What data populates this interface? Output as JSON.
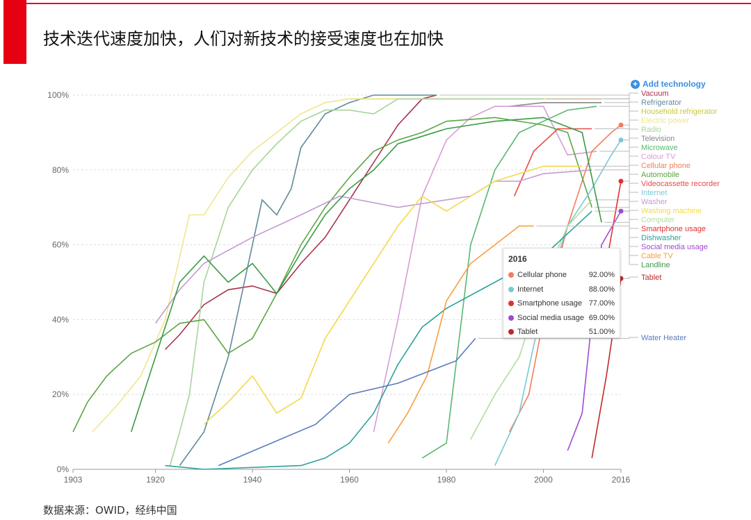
{
  "header": {
    "title": "技术迭代速度加快，人们对新技术的接受速度也在加快"
  },
  "footer": {
    "source": "数据来源：OWID，经纬中国"
  },
  "controls": {
    "add_technology": "Add technology"
  },
  "tooltip": {
    "year": "2016",
    "rows": [
      {
        "name": "Cellular phone",
        "value": "92.00%",
        "color": "#f47c5a"
      },
      {
        "name": "Internet",
        "value": "88.00%",
        "color": "#7cc8d2"
      },
      {
        "name": "Smartphone usage",
        "value": "77.00%",
        "color": "#e03030"
      },
      {
        "name": "Social media usage",
        "value": "69.00%",
        "color": "#a04ad2"
      },
      {
        "name": "Tablet",
        "value": "51.00%",
        "color": "#c0282a"
      }
    ]
  },
  "chart_data": {
    "type": "line",
    "title": "技术迭代速度加快，人们对新技术的接受速度也在加快",
    "xlabel": "",
    "ylabel": "",
    "xlim": [
      1903,
      2016
    ],
    "ylim": [
      0,
      100
    ],
    "x_ticks": [
      "1903",
      "1920",
      "1940",
      "1960",
      "1980",
      "2000",
      "2016"
    ],
    "y_ticks": [
      "0%",
      "20%",
      "40%",
      "60%",
      "80%",
      "100%"
    ],
    "legend_position": "right",
    "series": [
      {
        "name": "Vacuum",
        "color": "#a8324a",
        "points": [
          [
            1922,
            32
          ],
          [
            1925,
            36
          ],
          [
            1930,
            44
          ],
          [
            1935,
            48
          ],
          [
            1940,
            49
          ],
          [
            1945,
            47
          ],
          [
            1950,
            55
          ],
          [
            1955,
            62
          ],
          [
            1960,
            72
          ],
          [
            1965,
            82
          ],
          [
            1970,
            92
          ],
          [
            1975,
            99
          ],
          [
            1978,
            100
          ]
        ]
      },
      {
        "name": "Refrigerator",
        "color": "#5f8a9a",
        "points": [
          [
            1925,
            1
          ],
          [
            1930,
            10
          ],
          [
            1935,
            30
          ],
          [
            1940,
            60
          ],
          [
            1942,
            72
          ],
          [
            1945,
            68
          ],
          [
            1948,
            75
          ],
          [
            1950,
            86
          ],
          [
            1955,
            95
          ],
          [
            1960,
            98
          ],
          [
            1965,
            100
          ],
          [
            1978,
            100
          ]
        ]
      },
      {
        "name": "Household refrigerator",
        "color": "#c8c83c",
        "points": [
          [
            1960,
            99
          ],
          [
            1980,
            99
          ],
          [
            2000,
            99
          ],
          [
            2012,
            99
          ]
        ]
      },
      {
        "name": "Electric power",
        "color": "#f0e68c",
        "points": [
          [
            1907,
            10
          ],
          [
            1912,
            17
          ],
          [
            1917,
            25
          ],
          [
            1922,
            40
          ],
          [
            1927,
            68
          ],
          [
            1930,
            68
          ],
          [
            1935,
            78
          ],
          [
            1940,
            85
          ],
          [
            1945,
            90
          ],
          [
            1950,
            95
          ],
          [
            1955,
            98
          ],
          [
            1960,
            99
          ],
          [
            2012,
            99
          ]
        ]
      },
      {
        "name": "Radio",
        "color": "#a6d49a",
        "points": [
          [
            1923,
            1
          ],
          [
            1925,
            10
          ],
          [
            1927,
            20
          ],
          [
            1930,
            50
          ],
          [
            1935,
            70
          ],
          [
            1940,
            80
          ],
          [
            1945,
            87
          ],
          [
            1950,
            93
          ],
          [
            1955,
            96
          ],
          [
            1960,
            96
          ],
          [
            1965,
            95
          ],
          [
            1970,
            99
          ],
          [
            2000,
            99
          ]
        ]
      },
      {
        "name": "Television",
        "color": "#888888",
        "points": [
          [
            1993,
            97
          ],
          [
            2000,
            98
          ],
          [
            2012,
            98
          ]
        ]
      },
      {
        "name": "Microwave",
        "color": "#56b870",
        "points": [
          [
            1975,
            3
          ],
          [
            1980,
            7
          ],
          [
            1985,
            60
          ],
          [
            1990,
            80
          ],
          [
            1995,
            90
          ],
          [
            2000,
            93
          ],
          [
            2005,
            96
          ],
          [
            2011,
            97
          ]
        ]
      },
      {
        "name": "Colour TV",
        "color": "#d69ed2",
        "points": [
          [
            1965,
            10
          ],
          [
            1970,
            40
          ],
          [
            1975,
            73
          ],
          [
            1980,
            88
          ],
          [
            1985,
            94
          ],
          [
            1990,
            97
          ],
          [
            2000,
            97
          ],
          [
            2005,
            84
          ],
          [
            2011,
            85
          ]
        ]
      },
      {
        "name": "Cellular phone",
        "color": "#f47c5a",
        "points": [
          [
            1993,
            10
          ],
          [
            1997,
            20
          ],
          [
            2000,
            40
          ],
          [
            2005,
            65
          ],
          [
            2010,
            85
          ],
          [
            2014,
            90
          ],
          [
            2016,
            92
          ]
        ]
      },
      {
        "name": "Automobile",
        "color": "#5aa642",
        "points": [
          [
            1903,
            10
          ],
          [
            1906,
            18
          ],
          [
            1910,
            25
          ],
          [
            1915,
            31
          ],
          [
            1920,
            34
          ],
          [
            1925,
            39
          ],
          [
            1930,
            40
          ],
          [
            1935,
            31
          ],
          [
            1940,
            35
          ],
          [
            1945,
            47
          ],
          [
            1950,
            60
          ],
          [
            1955,
            70
          ],
          [
            1960,
            78
          ],
          [
            1965,
            85
          ],
          [
            1970,
            88
          ],
          [
            1975,
            90
          ],
          [
            1980,
            93
          ],
          [
            1990,
            94
          ],
          [
            2000,
            92
          ],
          [
            2005,
            90
          ],
          [
            2010,
            70
          ]
        ]
      },
      {
        "name": "Videocassette recorder",
        "color": "#e84a4a",
        "points": [
          [
            1994,
            73
          ],
          [
            1998,
            85
          ],
          [
            2003,
            91
          ],
          [
            2010,
            91
          ]
        ]
      },
      {
        "name": "Internet",
        "color": "#7cc8d2",
        "points": [
          [
            1990,
            1
          ],
          [
            1995,
            15
          ],
          [
            2000,
            45
          ],
          [
            2005,
            65
          ],
          [
            2010,
            75
          ],
          [
            2014,
            84
          ],
          [
            2016,
            88
          ]
        ]
      },
      {
        "name": "Washer",
        "color": "#c39ad2",
        "points": [
          [
            1920,
            39
          ],
          [
            1925,
            48
          ],
          [
            1930,
            55
          ],
          [
            1940,
            62
          ],
          [
            1950,
            68
          ],
          [
            1958,
            73
          ],
          [
            1970,
            70
          ],
          [
            1985,
            73
          ],
          [
            1990,
            77
          ],
          [
            1995,
            77
          ],
          [
            2000,
            79
          ],
          [
            2010,
            80
          ]
        ]
      },
      {
        "name": "Washing machine",
        "color": "#f5d84a",
        "points": [
          [
            1930,
            12
          ],
          [
            1935,
            18
          ],
          [
            1940,
            25
          ],
          [
            1945,
            15
          ],
          [
            1950,
            19
          ],
          [
            1955,
            35
          ],
          [
            1960,
            45
          ],
          [
            1965,
            55
          ],
          [
            1970,
            65
          ],
          [
            1975,
            73
          ],
          [
            1980,
            69
          ],
          [
            1985,
            73
          ],
          [
            1990,
            77
          ],
          [
            2000,
            81
          ],
          [
            2008,
            81
          ]
        ]
      },
      {
        "name": "Computer",
        "color": "#b4dca0",
        "points": [
          [
            1985,
            8
          ],
          [
            1990,
            20
          ],
          [
            1995,
            30
          ],
          [
            2000,
            50
          ],
          [
            2005,
            65
          ],
          [
            2010,
            72
          ]
        ]
      },
      {
        "name": "Smartphone usage",
        "color": "#e03030",
        "points": [
          [
            2011,
            35
          ],
          [
            2013,
            55
          ],
          [
            2016,
            77
          ]
        ]
      },
      {
        "name": "Dishwasher",
        "color": "#2aa19b",
        "points": [
          [
            1922,
            1
          ],
          [
            1930,
            0
          ],
          [
            1950,
            1
          ],
          [
            1955,
            3
          ],
          [
            1960,
            7
          ],
          [
            1965,
            15
          ],
          [
            1970,
            28
          ],
          [
            1975,
            38
          ],
          [
            1980,
            43
          ],
          [
            1990,
            50
          ],
          [
            2000,
            57
          ],
          [
            2010,
            69
          ]
        ]
      },
      {
        "name": "Social media usage",
        "color": "#a04ad2",
        "points": [
          [
            2005,
            5
          ],
          [
            2008,
            15
          ],
          [
            2010,
            40
          ],
          [
            2012,
            60
          ],
          [
            2016,
            69
          ]
        ]
      },
      {
        "name": "Cable TV",
        "color": "#f5a040",
        "points": [
          [
            1968,
            7
          ],
          [
            1972,
            15
          ],
          [
            1976,
            25
          ],
          [
            1980,
            45
          ],
          [
            1985,
            55
          ],
          [
            1990,
            60
          ],
          [
            1995,
            65
          ],
          [
            1998,
            65
          ]
        ]
      },
      {
        "name": "Landline",
        "color": "#3a9a46",
        "points": [
          [
            1915,
            10
          ],
          [
            1920,
            30
          ],
          [
            1925,
            50
          ],
          [
            1930,
            57
          ],
          [
            1935,
            50
          ],
          [
            1940,
            55
          ],
          [
            1945,
            47
          ],
          [
            1950,
            58
          ],
          [
            1955,
            68
          ],
          [
            1960,
            75
          ],
          [
            1965,
            80
          ],
          [
            1970,
            87
          ],
          [
            1975,
            89
          ],
          [
            1980,
            91
          ],
          [
            1990,
            93
          ],
          [
            2000,
            94
          ],
          [
            2008,
            90
          ],
          [
            2012,
            66
          ]
        ]
      },
      {
        "name": "Tablet",
        "color": "#c0282a",
        "points": [
          [
            2010,
            3
          ],
          [
            2013,
            25
          ],
          [
            2016,
            51
          ]
        ]
      },
      {
        "name": "Water Heater",
        "color": "#5a7abe",
        "points": [
          [
            1933,
            1
          ],
          [
            1953,
            12
          ],
          [
            1960,
            20
          ],
          [
            1970,
            23
          ],
          [
            1982,
            29
          ],
          [
            1986,
            35
          ]
        ]
      }
    ]
  }
}
